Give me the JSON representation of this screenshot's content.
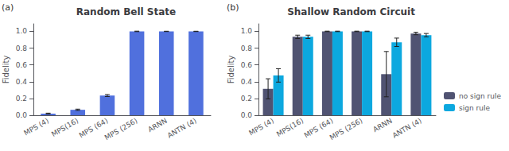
{
  "chart_data": [
    {
      "type": "bar",
      "title": "Random Bell State",
      "annotations": [
        "(a)"
      ],
      "ylabel": "Fidelity",
      "categories": [
        "MPS (4)",
        "MPS(16)",
        "MPS (64)",
        "MPS (256)",
        "ARNN",
        "ANTN (4)"
      ],
      "values": [
        0.02,
        0.065,
        0.235,
        1.0,
        1.0,
        1.0
      ],
      "errors": [
        0.005,
        0.008,
        0.012,
        0.003,
        0.002,
        0.002
      ],
      "ylim": [
        0,
        1.09
      ],
      "yticks": [
        {
          "value": 0,
          "label": "0.0"
        },
        0.2,
        0.4,
        0.6,
        0.8,
        {
          "value": 1,
          "label": "1.0"
        }
      ],
      "grid": false
    },
    {
      "type": "bar",
      "title": "Shallow Random Circuit",
      "annotations": [
        "(b)"
      ],
      "ylabel": "Fidelity",
      "categories": [
        "MPS (4)",
        "MPS(16)",
        "MPS (64)",
        "MPS (256)",
        "ARNN",
        "ANTN (4)"
      ],
      "series": [
        {
          "name": "no sign rule",
          "values": [
            0.315,
            0.935,
            1.0,
            1.0,
            0.49,
            0.975
          ],
          "errors": [
            0.12,
            0.02,
            0.003,
            0.003,
            0.27,
            0.015
          ]
        },
        {
          "name": "sign rule",
          "values": [
            0.475,
            0.935,
            1.0,
            1.0,
            0.87,
            0.955
          ],
          "errors": [
            0.08,
            0.02,
            0.003,
            0.003,
            0.05,
            0.02
          ]
        }
      ],
      "ylim": [
        0,
        1.09
      ],
      "yticks": [
        {
          "value": 0,
          "label": "0.0"
        },
        0.2,
        0.4,
        0.6,
        0.8,
        {
          "value": 1,
          "label": "1.0"
        }
      ],
      "grid": false,
      "legend": "lower right"
    }
  ]
}
